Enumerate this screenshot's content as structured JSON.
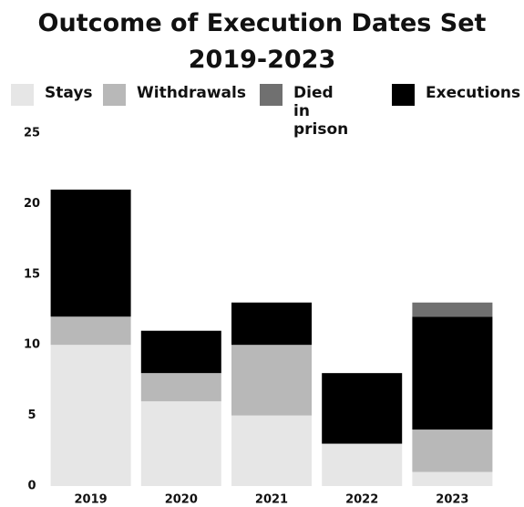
{
  "chart_data": {
    "type": "bar",
    "stacked": true,
    "title": "Outcome of Execution Dates Set 2019-2023",
    "categories": [
      "2019",
      "2020",
      "2021",
      "2022",
      "2023"
    ],
    "series": [
      {
        "name": "Stays",
        "color": "#e6e6e6",
        "values": [
          10,
          6,
          5,
          3,
          1
        ]
      },
      {
        "name": "Withdrawals",
        "color": "#b8b8b8",
        "values": [
          2,
          2,
          5,
          0,
          3
        ]
      },
      {
        "name": "Died in prison",
        "color": "#707070",
        "values": [
          0,
          0,
          0,
          0,
          1
        ]
      },
      {
        "name": "Executions",
        "color": "#000000",
        "values": [
          9,
          3,
          3,
          5,
          8
        ]
      }
    ],
    "ylim": [
      0,
      25
    ],
    "yticks": [
      0,
      5,
      10,
      15,
      20,
      25
    ],
    "grid": false,
    "legend": "top"
  }
}
